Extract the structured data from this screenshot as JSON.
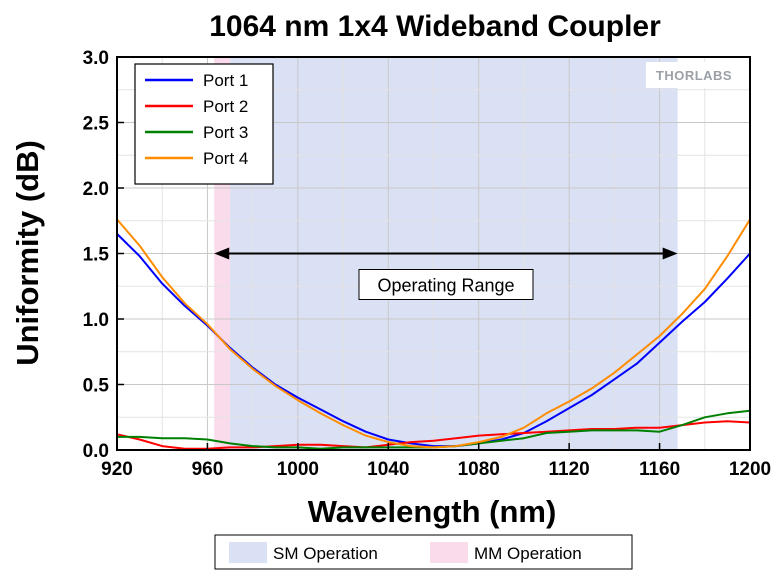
{
  "chart_data": {
    "type": "line",
    "title": "1064 nm 1x4 Wideband Coupler",
    "xlabel": "Wavelength (nm)",
    "ylabel": "Uniformity (dB)",
    "xlim": [
      920,
      1200
    ],
    "ylim": [
      0,
      3
    ],
    "x_ticks": [
      "920",
      "960",
      "1000",
      "1040",
      "1080",
      "1120",
      "1160",
      "1200"
    ],
    "y_ticks": [
      "0.0",
      "0.5",
      "1.0",
      "1.5",
      "2.0",
      "2.5",
      "3.0"
    ],
    "grid": true,
    "legend_position": "top-left",
    "logo_text": "THORLABS",
    "regions": [
      {
        "label": "SM Operation",
        "x_start": 970,
        "x_end": 1168,
        "color": "#dbe1f4"
      },
      {
        "label": "MM Operation",
        "x_start": 963,
        "x_end": 970,
        "color": "#fadbeb"
      }
    ],
    "annotation": {
      "label": "Operating Range",
      "x_start": 963,
      "x_end": 1168,
      "y": 1.5
    },
    "series": [
      {
        "name": "Port 1",
        "color": "#0000ff",
        "x": [
          920,
          930,
          940,
          950,
          960,
          970,
          980,
          990,
          1000,
          1010,
          1020,
          1030,
          1040,
          1050,
          1060,
          1070,
          1080,
          1090,
          1100,
          1110,
          1120,
          1130,
          1140,
          1150,
          1160,
          1170,
          1180,
          1190,
          1200
        ],
        "y": [
          1.65,
          1.48,
          1.27,
          1.1,
          0.95,
          0.78,
          0.63,
          0.5,
          0.4,
          0.31,
          0.22,
          0.14,
          0.08,
          0.05,
          0.03,
          0.03,
          0.05,
          0.08,
          0.13,
          0.22,
          0.32,
          0.42,
          0.54,
          0.66,
          0.82,
          0.98,
          1.13,
          1.31,
          1.5
        ]
      },
      {
        "name": "Port 2",
        "color": "#ff0000",
        "x": [
          920,
          930,
          940,
          950,
          960,
          970,
          980,
          990,
          1000,
          1010,
          1020,
          1030,
          1040,
          1050,
          1060,
          1070,
          1080,
          1090,
          1100,
          1110,
          1120,
          1130,
          1140,
          1150,
          1160,
          1170,
          1180,
          1190,
          1200
        ],
        "y": [
          0.12,
          0.08,
          0.03,
          0.01,
          0.01,
          0.02,
          0.02,
          0.03,
          0.04,
          0.04,
          0.03,
          0.02,
          0.04,
          0.06,
          0.07,
          0.09,
          0.11,
          0.12,
          0.13,
          0.14,
          0.15,
          0.16,
          0.16,
          0.17,
          0.17,
          0.19,
          0.21,
          0.22,
          0.21
        ]
      },
      {
        "name": "Port 3",
        "color": "#008000",
        "x": [
          920,
          930,
          940,
          950,
          960,
          970,
          980,
          990,
          1000,
          1010,
          1020,
          1030,
          1040,
          1050,
          1060,
          1070,
          1080,
          1090,
          1100,
          1110,
          1120,
          1130,
          1140,
          1150,
          1160,
          1170,
          1180,
          1190,
          1200
        ],
        "y": [
          0.1,
          0.1,
          0.09,
          0.09,
          0.08,
          0.05,
          0.03,
          0.02,
          0.02,
          0.01,
          0.02,
          0.02,
          0.02,
          0.02,
          0.02,
          0.03,
          0.05,
          0.07,
          0.09,
          0.13,
          0.14,
          0.15,
          0.15,
          0.15,
          0.14,
          0.19,
          0.25,
          0.28,
          0.3
        ]
      },
      {
        "name": "Port 4",
        "color": "#ff8c00",
        "x": [
          920,
          930,
          940,
          950,
          960,
          970,
          980,
          990,
          1000,
          1010,
          1020,
          1030,
          1040,
          1050,
          1060,
          1070,
          1080,
          1090,
          1100,
          1110,
          1120,
          1130,
          1140,
          1150,
          1160,
          1170,
          1180,
          1190,
          1200
        ],
        "y": [
          1.76,
          1.56,
          1.32,
          1.12,
          0.96,
          0.77,
          0.62,
          0.49,
          0.38,
          0.28,
          0.19,
          0.11,
          0.06,
          0.03,
          0.02,
          0.03,
          0.06,
          0.1,
          0.17,
          0.28,
          0.37,
          0.47,
          0.59,
          0.73,
          0.87,
          1.04,
          1.23,
          1.48,
          1.76
        ]
      }
    ]
  }
}
